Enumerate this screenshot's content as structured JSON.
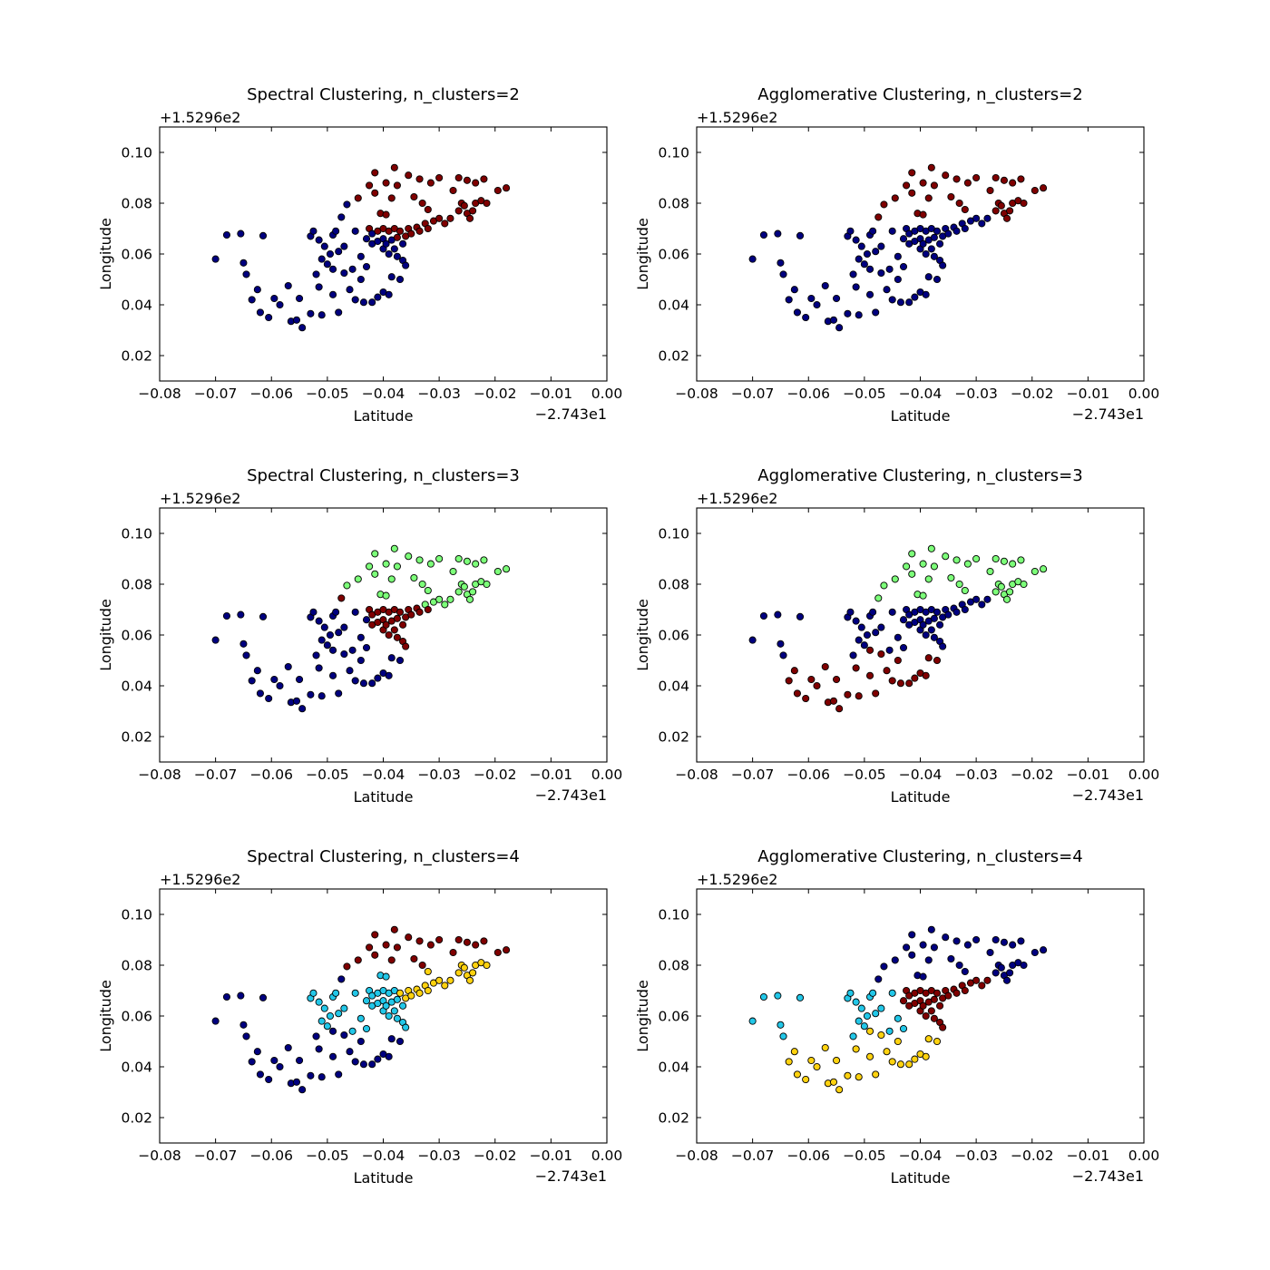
{
  "figure": {
    "xlabel": "Latitude",
    "ylabel": "Longitude",
    "x_offset_text": "−2.743e1",
    "y_offset_text": "+1.5296e2",
    "xlim": [
      -0.08,
      0.0
    ],
    "ylim": [
      0.01,
      0.11
    ],
    "xticks": [
      -0.08,
      -0.07,
      -0.06,
      -0.05,
      -0.04,
      -0.03,
      -0.02,
      -0.01,
      0.0
    ],
    "xtick_labels": [
      "−0.08",
      "−0.07",
      "−0.06",
      "−0.05",
      "−0.04",
      "−0.03",
      "−0.02",
      "−0.01",
      "0.00"
    ],
    "yticks": [
      0.02,
      0.04,
      0.06,
      0.08,
      0.1
    ],
    "ytick_labels": [
      "0.02",
      "0.04",
      "0.06",
      "0.08",
      "0.10"
    ],
    "grid": false,
    "legend": "none"
  },
  "colors": {
    "navy": "#00007f",
    "darkred": "#7f0000",
    "lightgreen": "#7cff79",
    "cyan": "#22c7e8",
    "yellow": "#ffd20f"
  },
  "points": [
    [
      -0.07,
      0.058
    ],
    [
      -0.068,
      0.0675
    ],
    [
      -0.0655,
      0.068
    ],
    [
      -0.065,
      0.0565
    ],
    [
      -0.0645,
      0.052
    ],
    [
      -0.0635,
      0.042
    ],
    [
      -0.0625,
      0.046
    ],
    [
      -0.062,
      0.037
    ],
    [
      -0.0615,
      0.0672
    ],
    [
      -0.0605,
      0.035
    ],
    [
      -0.0595,
      0.0425
    ],
    [
      -0.0585,
      0.04
    ],
    [
      -0.057,
      0.0475
    ],
    [
      -0.0565,
      0.0335
    ],
    [
      -0.0555,
      0.034
    ],
    [
      -0.055,
      0.0425
    ],
    [
      -0.0545,
      0.031
    ],
    [
      -0.053,
      0.0365
    ],
    [
      -0.053,
      0.067
    ],
    [
      -0.0525,
      0.069
    ],
    [
      -0.052,
      0.052
    ],
    [
      -0.0515,
      0.047
    ],
    [
      -0.0515,
      0.0655
    ],
    [
      -0.051,
      0.058
    ],
    [
      -0.051,
      0.036
    ],
    [
      -0.0505,
      0.063
    ],
    [
      -0.05,
      0.056
    ],
    [
      -0.0495,
      0.06
    ],
    [
      -0.049,
      0.054
    ],
    [
      -0.049,
      0.044
    ],
    [
      -0.049,
      0.0675
    ],
    [
      -0.0485,
      0.069
    ],
    [
      -0.048,
      0.061
    ],
    [
      -0.048,
      0.037
    ],
    [
      -0.0475,
      0.0745
    ],
    [
      -0.047,
      0.0525
    ],
    [
      -0.047,
      0.063
    ],
    [
      -0.0465,
      0.0795
    ],
    [
      -0.046,
      0.046
    ],
    [
      -0.0455,
      0.054
    ],
    [
      -0.045,
      0.042
    ],
    [
      -0.045,
      0.069
    ],
    [
      -0.0445,
      0.082
    ],
    [
      -0.044,
      0.059
    ],
    [
      -0.044,
      0.05
    ],
    [
      -0.0435,
      0.041
    ],
    [
      -0.043,
      0.055
    ],
    [
      -0.043,
      0.066
    ],
    [
      -0.0425,
      0.087
    ],
    [
      -0.0425,
      0.07
    ],
    [
      -0.042,
      0.068
    ],
    [
      -0.042,
      0.064
    ],
    [
      -0.042,
      0.041
    ],
    [
      -0.0415,
      0.092
    ],
    [
      -0.0415,
      0.084
    ],
    [
      -0.041,
      0.069
    ],
    [
      -0.041,
      0.065
    ],
    [
      -0.041,
      0.043
    ],
    [
      -0.0405,
      0.076
    ],
    [
      -0.04,
      0.07
    ],
    [
      -0.04,
      0.066
    ],
    [
      -0.04,
      0.062
    ],
    [
      -0.04,
      0.045
    ],
    [
      -0.0395,
      0.088
    ],
    [
      -0.0395,
      0.0755
    ],
    [
      -0.0395,
      0.064
    ],
    [
      -0.039,
      0.069
    ],
    [
      -0.039,
      0.06
    ],
    [
      -0.039,
      0.044
    ],
    [
      -0.0385,
      0.082
    ],
    [
      -0.0385,
      0.0655
    ],
    [
      -0.0385,
      0.051
    ],
    [
      -0.038,
      0.094
    ],
    [
      -0.038,
      0.07
    ],
    [
      -0.038,
      0.062
    ],
    [
      -0.0375,
      0.087
    ],
    [
      -0.0375,
      0.0665
    ],
    [
      -0.0375,
      0.059
    ],
    [
      -0.037,
      0.069
    ],
    [
      -0.037,
      0.05
    ],
    [
      -0.0365,
      0.064
    ],
    [
      -0.0365,
      0.0575
    ],
    [
      -0.036,
      0.067
    ],
    [
      -0.036,
      0.0555
    ],
    [
      -0.0355,
      0.091
    ],
    [
      -0.0355,
      0.07
    ],
    [
      -0.035,
      0.068
    ],
    [
      -0.0345,
      0.0825
    ],
    [
      -0.034,
      0.0705
    ],
    [
      -0.0335,
      0.0895
    ],
    [
      -0.0335,
      0.069
    ],
    [
      -0.033,
      0.08
    ],
    [
      -0.0325,
      0.072
    ],
    [
      -0.032,
      0.0775
    ],
    [
      -0.032,
      0.07
    ],
    [
      -0.0315,
      0.088
    ],
    [
      -0.031,
      0.073
    ],
    [
      -0.03,
      0.09
    ],
    [
      -0.03,
      0.074
    ],
    [
      -0.029,
      0.072
    ],
    [
      -0.028,
      0.074
    ],
    [
      -0.0275,
      0.085
    ],
    [
      -0.0265,
      0.09
    ],
    [
      -0.0265,
      0.077
    ],
    [
      -0.026,
      0.08
    ],
    [
      -0.0255,
      0.079
    ],
    [
      -0.025,
      0.089
    ],
    [
      -0.025,
      0.076
    ],
    [
      -0.0245,
      0.074
    ],
    [
      -0.024,
      0.077
    ],
    [
      -0.0235,
      0.08
    ],
    [
      -0.0235,
      0.088
    ],
    [
      -0.0225,
      0.081
    ],
    [
      -0.022,
      0.0895
    ],
    [
      -0.0215,
      0.08
    ],
    [
      -0.0195,
      0.085
    ],
    [
      -0.018,
      0.086
    ]
  ],
  "plots": [
    {
      "title": "Spectral Clustering, n_clusters=2",
      "labels": [
        0,
        0,
        0,
        0,
        0,
        0,
        0,
        0,
        0,
        0,
        0,
        0,
        0,
        0,
        0,
        0,
        0,
        0,
        0,
        0,
        0,
        0,
        0,
        0,
        0,
        0,
        0,
        0,
        0,
        0,
        0,
        0,
        0,
        0,
        0,
        0,
        0,
        0,
        0,
        0,
        0,
        0,
        1,
        0,
        0,
        0,
        0,
        0,
        1,
        1,
        0,
        0,
        0,
        1,
        1,
        1,
        0,
        0,
        1,
        1,
        0,
        0,
        0,
        1,
        1,
        0,
        1,
        0,
        0,
        1,
        0,
        0,
        1,
        1,
        0,
        1,
        1,
        0,
        1,
        0,
        0,
        0,
        1,
        0,
        1,
        1,
        1,
        1,
        1,
        1,
        1,
        1,
        1,
        1,
        1,
        1,
        1,
        1,
        1,
        1,
        1,
        1,
        1,
        1,
        1,
        1,
        1,
        1,
        1,
        1,
        1,
        1,
        1,
        1,
        1,
        1,
        1,
        1,
        1
      ]
    },
    {
      "title": "Agglomerative Clustering, n_clusters=2",
      "labels": [
        0,
        0,
        0,
        0,
        0,
        0,
        0,
        0,
        0,
        0,
        0,
        0,
        0,
        0,
        0,
        0,
        0,
        0,
        0,
        0,
        0,
        0,
        0,
        0,
        0,
        0,
        0,
        0,
        0,
        0,
        0,
        0,
        0,
        0,
        1,
        0,
        0,
        1,
        0,
        0,
        0,
        0,
        1,
        0,
        0,
        0,
        0,
        0,
        1,
        0,
        0,
        0,
        0,
        1,
        1,
        0,
        0,
        0,
        1,
        0,
        0,
        0,
        0,
        1,
        1,
        0,
        0,
        0,
        0,
        1,
        0,
        0,
        1,
        0,
        0,
        1,
        0,
        0,
        0,
        0,
        0,
        0,
        0,
        0,
        1,
        0,
        0,
        1,
        0,
        1,
        0,
        1,
        0,
        1,
        0,
        1,
        0,
        1,
        0,
        0,
        0,
        1,
        1,
        1,
        1,
        1,
        1,
        1,
        1,
        1,
        1,
        1,
        1,
        1,
        1,
        1,
        1,
        1,
        1
      ]
    },
    {
      "title": "Spectral Clustering, n_clusters=3",
      "labels": [
        0,
        0,
        0,
        0,
        0,
        0,
        0,
        0,
        0,
        0,
        0,
        0,
        0,
        0,
        0,
        0,
        0,
        0,
        0,
        0,
        0,
        0,
        0,
        0,
        0,
        0,
        0,
        0,
        0,
        0,
        0,
        0,
        0,
        0,
        1,
        0,
        0,
        2,
        0,
        0,
        0,
        0,
        2,
        0,
        0,
        0,
        0,
        0,
        2,
        1,
        1,
        1,
        0,
        2,
        2,
        1,
        1,
        0,
        2,
        1,
        1,
        1,
        0,
        2,
        2,
        1,
        1,
        1,
        0,
        2,
        1,
        0,
        2,
        1,
        1,
        2,
        1,
        1,
        1,
        0,
        1,
        1,
        1,
        1,
        2,
        1,
        1,
        2,
        1,
        2,
        1,
        2,
        2,
        2,
        1,
        2,
        2,
        2,
        2,
        2,
        2,
        2,
        2,
        2,
        2,
        2,
        2,
        2,
        2,
        2,
        2,
        2,
        2,
        2,
        2,
        2,
        2,
        2,
        2
      ]
    },
    {
      "title": "Agglomerative Clustering, n_clusters=3",
      "labels": [
        0,
        0,
        0,
        0,
        0,
        1,
        1,
        1,
        0,
        1,
        1,
        1,
        1,
        1,
        1,
        1,
        1,
        1,
        0,
        0,
        0,
        1,
        0,
        0,
        1,
        0,
        0,
        0,
        1,
        1,
        0,
        0,
        0,
        1,
        2,
        1,
        0,
        2,
        1,
        0,
        1,
        0,
        2,
        0,
        1,
        1,
        0,
        0,
        2,
        0,
        0,
        0,
        1,
        2,
        2,
        0,
        0,
        1,
        2,
        0,
        0,
        0,
        1,
        2,
        2,
        0,
        0,
        0,
        1,
        2,
        0,
        1,
        2,
        0,
        0,
        2,
        0,
        0,
        0,
        1,
        0,
        0,
        0,
        0,
        2,
        0,
        0,
        2,
        0,
        2,
        0,
        2,
        0,
        2,
        0,
        2,
        0,
        2,
        0,
        0,
        0,
        2,
        2,
        2,
        2,
        2,
        2,
        2,
        2,
        2,
        2,
        2,
        2,
        2,
        2,
        2,
        2,
        2,
        2
      ]
    },
    {
      "title": "Spectral Clustering, n_clusters=4",
      "labels": [
        0,
        0,
        0,
        0,
        0,
        0,
        0,
        0,
        0,
        0,
        0,
        0,
        0,
        0,
        0,
        0,
        0,
        0,
        1,
        1,
        0,
        0,
        1,
        1,
        0,
        1,
        1,
        1,
        0,
        0,
        1,
        1,
        1,
        0,
        0,
        0,
        1,
        2,
        0,
        1,
        0,
        1,
        2,
        1,
        0,
        0,
        1,
        1,
        2,
        1,
        1,
        1,
        0,
        2,
        2,
        1,
        1,
        0,
        1,
        1,
        1,
        1,
        0,
        2,
        1,
        1,
        1,
        1,
        0,
        2,
        1,
        0,
        2,
        1,
        1,
        2,
        1,
        1,
        3,
        0,
        1,
        1,
        3,
        1,
        2,
        3,
        3,
        2,
        3,
        2,
        3,
        2,
        3,
        3,
        3,
        2,
        3,
        2,
        3,
        3,
        3,
        2,
        2,
        3,
        3,
        3,
        2,
        3,
        3,
        3,
        3,
        2,
        3,
        2,
        3,
        2,
        2,
        2,
        2
      ]
    },
    {
      "title": "Agglomerative Clustering, n_clusters=4",
      "labels": [
        1,
        1,
        1,
        1,
        1,
        3,
        3,
        3,
        1,
        3,
        3,
        3,
        3,
        3,
        3,
        3,
        3,
        3,
        1,
        1,
        1,
        3,
        1,
        1,
        3,
        1,
        1,
        1,
        3,
        3,
        1,
        1,
        1,
        3,
        0,
        3,
        1,
        0,
        3,
        1,
        3,
        1,
        0,
        1,
        3,
        3,
        1,
        2,
        0,
        2,
        2,
        2,
        3,
        0,
        0,
        2,
        2,
        3,
        0,
        2,
        2,
        2,
        3,
        0,
        0,
        2,
        2,
        2,
        3,
        0,
        2,
        3,
        0,
        2,
        2,
        0,
        2,
        2,
        2,
        3,
        2,
        2,
        2,
        2,
        0,
        2,
        2,
        0,
        2,
        0,
        2,
        0,
        2,
        0,
        2,
        0,
        2,
        0,
        2,
        2,
        2,
        0,
        0,
        0,
        0,
        0,
        0,
        0,
        0,
        0,
        0,
        0,
        0,
        0,
        0,
        0,
        0,
        0,
        0
      ]
    }
  ],
  "chart_data": [
    {
      "type": "scatter",
      "title": "Spectral Clustering, n_clusters=2",
      "xlabel": "Latitude",
      "ylabel": "Longitude",
      "xlim": [
        -0.08,
        0.0
      ],
      "ylim": [
        0.01,
        0.11
      ],
      "palette": [
        "#00007f",
        "#7f0000"
      ]
    },
    {
      "type": "scatter",
      "title": "Agglomerative Clustering, n_clusters=2",
      "xlabel": "Latitude",
      "ylabel": "Longitude",
      "xlim": [
        -0.08,
        0.0
      ],
      "ylim": [
        0.01,
        0.11
      ],
      "palette": [
        "#00007f",
        "#7f0000"
      ]
    },
    {
      "type": "scatter",
      "title": "Spectral Clustering, n_clusters=3",
      "xlabel": "Latitude",
      "ylabel": "Longitude",
      "xlim": [
        -0.08,
        0.0
      ],
      "ylim": [
        0.01,
        0.11
      ],
      "palette": [
        "#00007f",
        "#7f0000",
        "#7cff79"
      ]
    },
    {
      "type": "scatter",
      "title": "Agglomerative Clustering, n_clusters=3",
      "xlabel": "Latitude",
      "ylabel": "Longitude",
      "xlim": [
        -0.08,
        0.0
      ],
      "ylim": [
        0.01,
        0.11
      ],
      "palette": [
        "#00007f",
        "#7f0000",
        "#7cff79"
      ]
    },
    {
      "type": "scatter",
      "title": "Spectral Clustering, n_clusters=4",
      "xlabel": "Latitude",
      "ylabel": "Longitude",
      "xlim": [
        -0.08,
        0.0
      ],
      "ylim": [
        0.01,
        0.11
      ],
      "palette": [
        "#00007f",
        "#22c7e8",
        "#7f0000",
        "#ffd20f"
      ]
    },
    {
      "type": "scatter",
      "title": "Agglomerative Clustering, n_clusters=4",
      "xlabel": "Latitude",
      "ylabel": "Longitude",
      "xlim": [
        -0.08,
        0.0
      ],
      "ylim": [
        0.01,
        0.11
      ],
      "palette": [
        "#00007f",
        "#22c7e8",
        "#7f0000",
        "#ffd20f"
      ]
    }
  ]
}
